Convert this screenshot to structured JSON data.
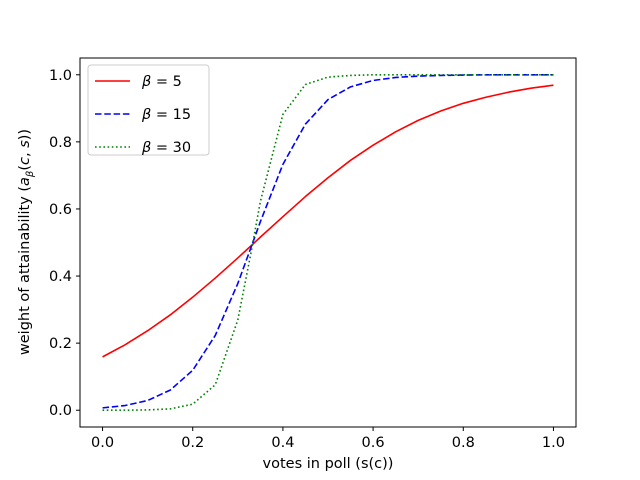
{
  "chart_data": {
    "type": "line",
    "title": "",
    "xlabel": "votes in poll (s(c))",
    "ylabel": "weight of attainability (aβ(c, s))",
    "xlim": [
      -0.05,
      1.05
    ],
    "ylim": [
      -0.05,
      1.05
    ],
    "xticks": [
      0.0,
      0.2,
      0.4,
      0.6,
      0.8,
      1.0
    ],
    "xtick_labels": [
      "0.0",
      "0.2",
      "0.4",
      "0.6",
      "0.8",
      "1.0"
    ],
    "yticks": [
      0.0,
      0.2,
      0.4,
      0.6,
      0.8,
      1.0
    ],
    "ytick_labels": [
      "0.0",
      "0.2",
      "0.4",
      "0.6",
      "0.8",
      "1.0"
    ],
    "grid": false,
    "legend_position": "upper-left",
    "x": [
      0.0,
      0.05,
      0.1,
      0.15,
      0.2,
      0.25,
      0.3,
      0.33,
      0.35,
      0.4,
      0.45,
      0.5,
      0.55,
      0.6,
      0.65,
      0.7,
      0.75,
      0.8,
      0.85,
      0.9,
      0.95,
      1.0
    ],
    "series": [
      {
        "name": "β = 5",
        "label_symbol": "β",
        "label_value": "5",
        "color": "#ff0000",
        "dash": "solid",
        "values": [
          0.159,
          0.195,
          0.237,
          0.284,
          0.337,
          0.394,
          0.454,
          0.491,
          0.516,
          0.577,
          0.637,
          0.693,
          0.745,
          0.79,
          0.83,
          0.864,
          0.892,
          0.915,
          0.933,
          0.948,
          0.96,
          0.969
        ]
      },
      {
        "name": "β = 15",
        "label_symbol": "β",
        "label_value": "15",
        "color": "#0000ff",
        "dash": "dashed",
        "values": [
          0.007,
          0.014,
          0.029,
          0.06,
          0.119,
          0.223,
          0.378,
          0.488,
          0.562,
          0.733,
          0.853,
          0.926,
          0.964,
          0.983,
          0.992,
          0.996,
          0.998,
          0.999,
          1.0,
          1.0,
          1.0,
          1.0
        ]
      },
      {
        "name": "β = 30",
        "label_symbol": "β",
        "label_value": "30",
        "color": "#008000",
        "dash": "dotted",
        "values": [
          0.0,
          0.0,
          0.001,
          0.004,
          0.018,
          0.076,
          0.269,
          0.475,
          0.622,
          0.882,
          0.971,
          0.993,
          0.998,
          1.0,
          1.0,
          1.0,
          1.0,
          1.0,
          1.0,
          1.0,
          1.0,
          1.0
        ]
      }
    ]
  }
}
